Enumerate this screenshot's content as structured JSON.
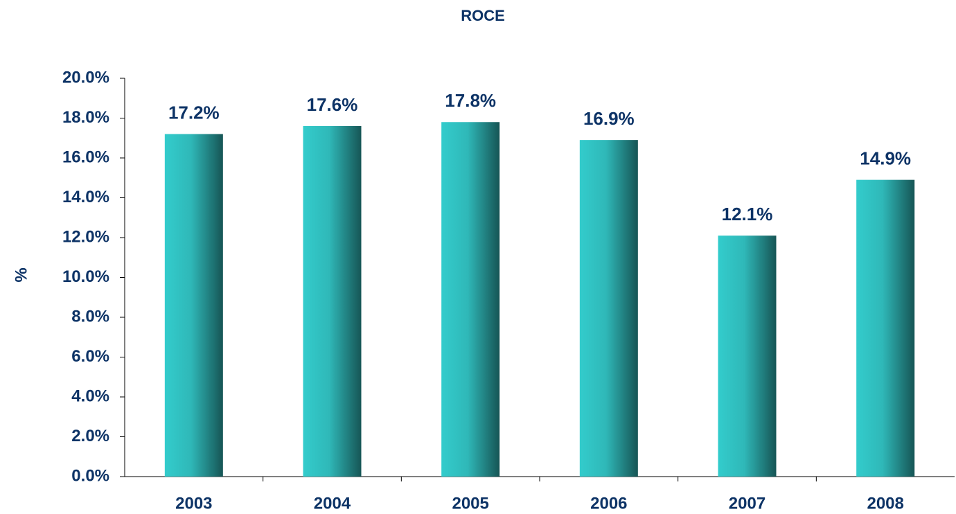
{
  "chart_data": {
    "type": "bar",
    "title": "ROCE",
    "y_label": "%",
    "categories": [
      "2003",
      "2004",
      "2005",
      "2006",
      "2007",
      "2008"
    ],
    "values": [
      17.2,
      17.6,
      17.8,
      16.9,
      12.1,
      14.9
    ],
    "value_labels": [
      "17.2%",
      "17.6%",
      "17.8%",
      "16.9%",
      "12.1%",
      "14.9%"
    ],
    "color": "#33cccc",
    "ylim": [
      0,
      20
    ],
    "yticks": [
      {
        "value": 0,
        "label": "0.0%"
      },
      {
        "value": 2,
        "label": "2.0%"
      },
      {
        "value": 4,
        "label": "4.0%"
      },
      {
        "value": 6,
        "label": "6.0%"
      },
      {
        "value": 8,
        "label": "8.0%"
      },
      {
        "value": 10,
        "label": "10.0%"
      },
      {
        "value": 12,
        "label": "12.0%"
      },
      {
        "value": 14,
        "label": "14.0%"
      },
      {
        "value": 16,
        "label": "16.0%"
      },
      {
        "value": 18,
        "label": "18.0%"
      },
      {
        "value": 20,
        "label": "20.0%"
      }
    ],
    "grid": false
  }
}
